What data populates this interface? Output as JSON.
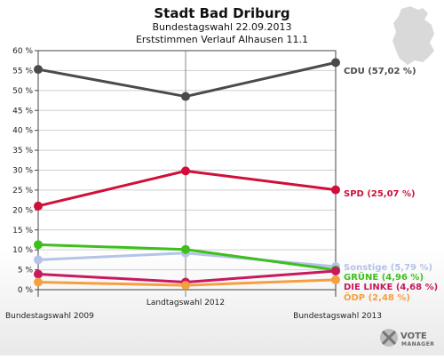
{
  "header": {
    "title": "Stadt Bad Driburg",
    "line1": "Bundestagswahl 22.09.2013",
    "line2": "Erststimmen Verlauf Alhausen 11.1"
  },
  "logo": {
    "line1": "VOTE",
    "line2": "MANAGER"
  },
  "chart_data": {
    "type": "line",
    "title": "Stadt Bad Driburg",
    "subtitle": "Bundestagswahl 22.09.2013 — Erststimmen Verlauf Alhausen 11.1",
    "categories": [
      "Bundestagswahl 2009",
      "Landtagswahl 2012",
      "Bundestagswahl 2013"
    ],
    "ylim": [
      0,
      60
    ],
    "yticks": [
      "0 %",
      "5 %",
      "10 %",
      "15 %",
      "20 %",
      "25 %",
      "30 %",
      "35 %",
      "40 %",
      "45 %",
      "50 %",
      "55 %",
      "60 %"
    ],
    "ytick_values": [
      0,
      5,
      10,
      15,
      20,
      25,
      30,
      35,
      40,
      45,
      50,
      55,
      60
    ],
    "grid": true,
    "series": [
      {
        "name": "CDU",
        "values": [
          55.3,
          48.5,
          57.02
        ],
        "color": "#4a4a4a",
        "label": "CDU (57,02 %)"
      },
      {
        "name": "SPD",
        "values": [
          21.0,
          29.8,
          25.07
        ],
        "color": "#d0103a",
        "label": "SPD (25,07 %)"
      },
      {
        "name": "Sonstige",
        "values": [
          7.5,
          9.2,
          5.79
        ],
        "color": "#b4c3e8",
        "label": "Sonstige (5,79 %)"
      },
      {
        "name": "GRÜNE",
        "values": [
          11.3,
          10.1,
          4.96
        ],
        "color": "#3dbf1c",
        "label": "GRÜNE (4,96 %)"
      },
      {
        "name": "DIE LINKE",
        "values": [
          3.9,
          1.9,
          4.68
        ],
        "color": "#c8185e",
        "label": "DIE LINKE (4,68 %)"
      },
      {
        "name": "ÖDP",
        "values": [
          1.9,
          1.1,
          2.48
        ],
        "color": "#f5a040",
        "label": "ÖDP (2,48 %)"
      }
    ]
  }
}
